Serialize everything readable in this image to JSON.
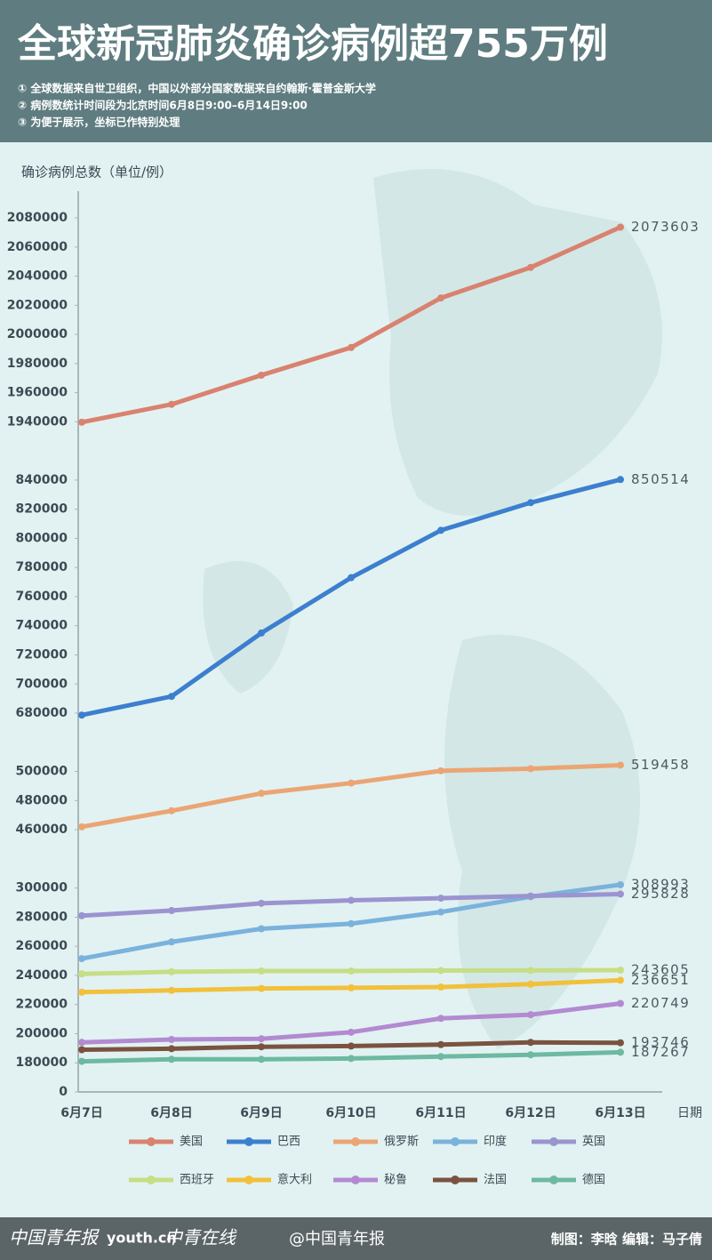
{
  "chart_data": {
    "type": "line",
    "title": "全球新冠肺炎确诊病例超755万例",
    "notes": [
      "① 全球数据来自世卫组织，中国以外部分国家数据来自约翰斯·霍普金斯大学",
      "② 病例数统计时间段为北京时间6月8日9:00–6月14日9:00",
      "③ 为便于展示，坐标已作特别处理"
    ],
    "y_label": "确诊病例总数（单位/例）",
    "x_label": "日期",
    "categories": [
      "6月7日",
      "6月8日",
      "6月9日",
      "6月10日",
      "6月11日",
      "6月12日",
      "6月13日"
    ],
    "yticks": [
      0,
      180000,
      200000,
      220000,
      240000,
      260000,
      280000,
      300000,
      460000,
      480000,
      500000,
      680000,
      700000,
      720000,
      740000,
      760000,
      780000,
      800000,
      820000,
      840000,
      1940000,
      1960000,
      1980000,
      2000000,
      2020000,
      2040000,
      2060000,
      2080000
    ],
    "ylim": [
      0,
      2080000
    ],
    "axis_breaks": [
      [
        300000,
        460000
      ],
      [
        500000,
        680000
      ],
      [
        840000,
        1940000
      ]
    ],
    "grid": false,
    "legend": "bottom",
    "series": [
      {
        "name": "美国",
        "color": "#d9826f",
        "values": [
          1932000,
          1952000,
          1972000,
          1991000,
          2025000,
          2046000,
          2073603
        ]
      },
      {
        "name": "巴西",
        "color": "#3c7fcf",
        "values": [
          674000,
          691500,
          735000,
          773000,
          805500,
          824500,
          850514
        ]
      },
      {
        "name": "俄罗斯",
        "color": "#eba574",
        "values": [
          462000,
          473000,
          485000,
          492000,
          502000,
          508500,
          519458
        ]
      },
      {
        "name": "印度",
        "color": "#7ab2dc",
        "values": [
          251500,
          263000,
          272000,
          275500,
          283500,
          294000,
          308993
        ]
      },
      {
        "name": "英国",
        "color": "#9b94d0",
        "values": [
          281000,
          284500,
          289500,
          291500,
          293000,
          294500,
          295828
        ]
      },
      {
        "name": "西班牙",
        "color": "#c6de84",
        "values": [
          241000,
          242500,
          243000,
          243000,
          243300,
          243400,
          243605
        ]
      },
      {
        "name": "意大利",
        "color": "#f2c03a",
        "values": [
          228500,
          229700,
          231000,
          231500,
          232000,
          234000,
          236651
        ]
      },
      {
        "name": "秘鲁",
        "color": "#b38ad1",
        "values": [
          194000,
          196000,
          196500,
          201000,
          210500,
          213000,
          220749
        ]
      },
      {
        "name": "法国",
        "color": "#7a5340",
        "values": [
          189000,
          189700,
          191000,
          191500,
          192500,
          194000,
          193746
        ]
      },
      {
        "name": "德国",
        "color": "#6db9a1",
        "values": [
          181000,
          182400,
          182400,
          183000,
          184300,
          185500,
          187267
        ]
      }
    ]
  },
  "footer": {
    "logos": [
      "中国青年报",
      "youth.cn",
      "中青在线"
    ],
    "weibo": "@中国青年报",
    "credits": "制图：李晗   编辑：马子倩"
  }
}
